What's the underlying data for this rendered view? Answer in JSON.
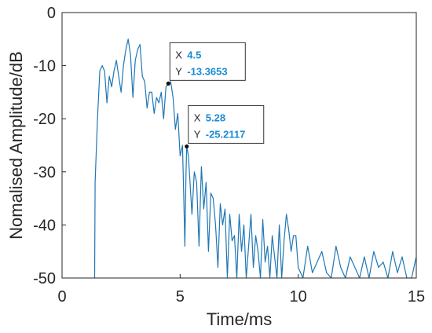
{
  "chart_data": {
    "type": "line",
    "xlabel": "Time/ms",
    "ylabel": "Nomalised Amplitude/dB",
    "xlim": [
      0,
      15
    ],
    "ylim": [
      -50,
      0
    ],
    "x_ticks": [
      "0",
      "5",
      "10",
      "15"
    ],
    "y_ticks": [
      "0",
      "-10",
      "-20",
      "-30",
      "-40",
      "-50"
    ],
    "grid": false,
    "line_color": "#1f77b4",
    "series": [
      {
        "x": [
          1.38,
          1.4,
          1.5,
          1.6,
          1.7,
          1.8,
          1.9,
          2.0,
          2.1,
          2.2,
          2.3,
          2.4,
          2.5,
          2.6,
          2.7,
          2.8,
          2.9,
          3.0,
          3.1,
          3.2,
          3.3,
          3.4,
          3.5,
          3.6,
          3.7,
          3.8,
          3.9,
          4.0,
          4.1,
          4.2,
          4.3,
          4.4,
          4.5,
          4.6,
          4.7,
          4.8,
          4.9,
          5.0,
          5.1,
          5.15,
          5.2,
          5.25,
          5.28,
          5.35,
          5.5,
          5.6,
          5.7,
          5.8,
          5.9,
          6.0,
          6.1,
          6.2,
          6.3,
          6.4,
          6.5,
          6.6,
          6.7,
          6.8,
          6.9,
          7.0,
          7.1,
          7.2,
          7.3,
          7.4,
          7.5,
          7.6,
          7.7,
          7.8,
          7.9,
          8.0,
          8.1,
          8.2,
          8.3,
          8.4,
          8.5,
          8.6,
          8.7,
          8.8,
          8.9,
          9.0,
          9.1,
          9.2,
          9.3,
          9.4,
          9.5,
          9.6,
          9.7,
          9.8,
          9.9,
          10.0,
          10.2,
          10.4,
          10.6,
          10.8,
          11.0,
          11.2,
          11.4,
          11.6,
          11.8,
          12.0,
          12.2,
          12.4,
          12.6,
          12.8,
          13.0,
          13.2,
          13.4,
          13.6,
          13.8,
          14.0,
          14.2,
          14.4,
          14.6,
          14.8,
          15.0
        ],
        "y": [
          -50,
          -32,
          -20,
          -11,
          -10,
          -11,
          -17,
          -12,
          -14,
          -11,
          -9,
          -12,
          -15,
          -10,
          -7,
          -5,
          -8,
          -16,
          -9,
          -7,
          -6,
          -12,
          -13,
          -18,
          -15,
          -15,
          -19,
          -16,
          -17,
          -15,
          -20,
          -14,
          -13.4,
          -13,
          -16,
          -22,
          -19,
          -27,
          -25,
          -34,
          -44,
          -30,
          -25.2,
          -27,
          -38,
          -30,
          -32,
          -44,
          -29,
          -37,
          -32,
          -45,
          -34,
          -35,
          -40,
          -48,
          -36,
          -40,
          -37,
          -50,
          -38,
          -43,
          -42,
          -50,
          -38,
          -45,
          -40,
          -50,
          -44,
          -38,
          -48,
          -42,
          -45,
          -50,
          -39,
          -47,
          -44,
          -50,
          -42,
          -46,
          -50,
          -40,
          -50,
          -43,
          -38,
          -41,
          -45,
          -42,
          -42,
          -48,
          -50,
          -44,
          -49,
          -47,
          -45,
          -49,
          -50,
          -44,
          -48,
          -50,
          -46,
          -48,
          -50,
          -46,
          -50,
          -45,
          -48,
          -47,
          -50,
          -45,
          -49,
          -46,
          -50,
          -50,
          -46
        ]
      }
    ],
    "datatips": [
      {
        "x_label": "X",
        "x_value": "4.5",
        "y_label": "Y",
        "y_value": "-13.3653",
        "x": 4.5,
        "y": -13.3653
      },
      {
        "x_label": "X",
        "x_value": "5.28",
        "y_label": "Y",
        "y_value": "-25.2117",
        "x": 5.28,
        "y": -25.2117
      }
    ]
  }
}
